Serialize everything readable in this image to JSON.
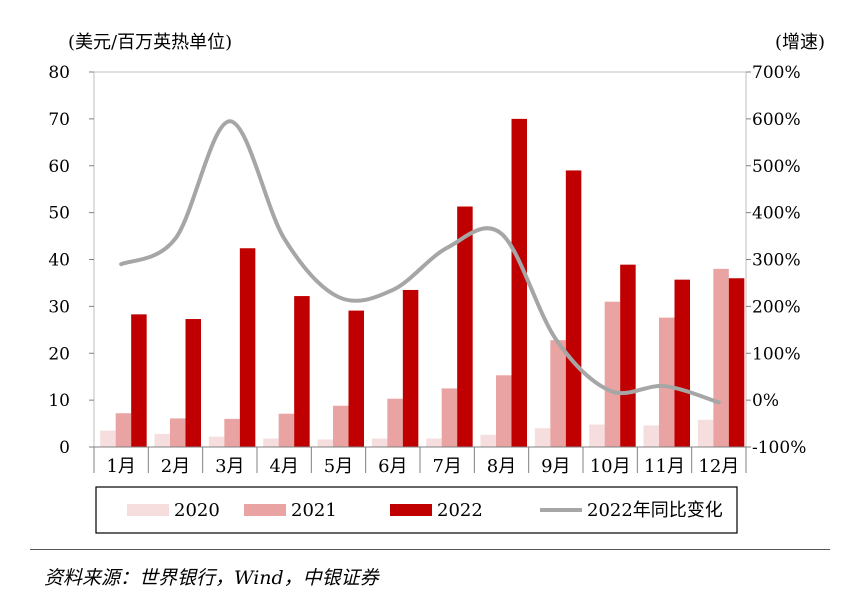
{
  "chart_data": {
    "type": "bar",
    "y_left_unit": "(美元/百万英热单位)",
    "y_right_unit": "(增速)",
    "categories": [
      "1月",
      "2月",
      "3月",
      "4月",
      "5月",
      "6月",
      "7月",
      "8月",
      "9月",
      "10月",
      "11月",
      "12月"
    ],
    "ylim": [
      0,
      80
    ],
    "yticks": [
      "0",
      "10",
      "20",
      "30",
      "40",
      "50",
      "60",
      "70",
      "80"
    ],
    "y2lim": [
      -100,
      700
    ],
    "y2ticks": [
      "-100%",
      "0%",
      "100%",
      "200%",
      "300%",
      "400%",
      "500%",
      "600%",
      "700%"
    ],
    "series": [
      {
        "name": "2020",
        "type": "bar",
        "color": "#f6dede",
        "values": [
          3.5,
          2.8,
          2.2,
          1.8,
          1.6,
          1.8,
          1.8,
          2.6,
          4.0,
          4.8,
          4.6,
          5.8
        ]
      },
      {
        "name": "2021",
        "type": "bar",
        "color": "#eaa3a3",
        "values": [
          7.2,
          6.1,
          6.0,
          7.1,
          8.8,
          10.3,
          12.5,
          15.3,
          22.8,
          31.0,
          27.6,
          38.0
        ]
      },
      {
        "name": "2022",
        "type": "bar",
        "color": "#c00000",
        "values": [
          28.3,
          27.3,
          42.4,
          32.2,
          29.1,
          33.5,
          51.3,
          70.0,
          59.0,
          38.9,
          35.7,
          36.0
        ]
      },
      {
        "name": "2022年同比变化",
        "type": "line",
        "axis": "right",
        "color": "#a6a6a6",
        "values": [
          290,
          345,
          595,
          345,
          220,
          235,
          325,
          355,
          130,
          20,
          30,
          -5
        ]
      }
    ],
    "legend_position": "bottom",
    "grid": false
  },
  "source_text": "资料来源：世界银行，Wind，中银证券"
}
